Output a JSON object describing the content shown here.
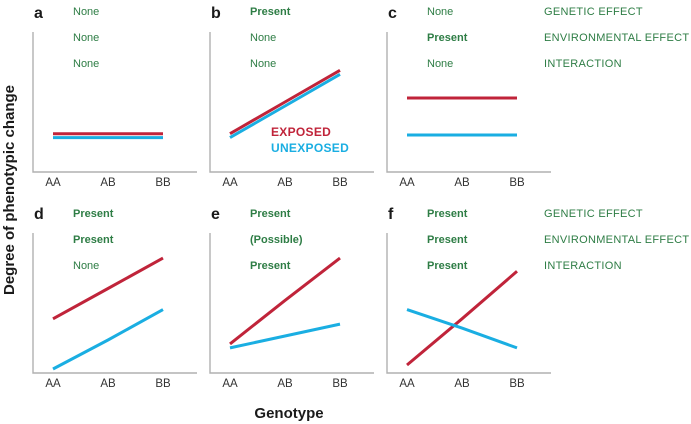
{
  "colors": {
    "exposed": "#c0243a",
    "unexposed": "#1aaee2",
    "status_text": "#2e7d45",
    "axis": "#b0b0b0"
  },
  "legend": {
    "row_labels": [
      "GENETIC EFFECT",
      "ENVIRONMENTAL EFFECT",
      "INTERACTION"
    ],
    "exposed_label": "EXPOSED",
    "unexposed_label": "UNEXPOSED"
  },
  "axes": {
    "xlabel": "Genotype",
    "ylabel": "Degree of phenotypic change"
  },
  "chart_data": [
    {
      "panel": "a",
      "type": "line",
      "categories": [
        "AA",
        "AB",
        "BB"
      ],
      "ylim": [
        0,
        10
      ],
      "effects": [
        "None",
        "None",
        "None"
      ],
      "series": [
        {
          "name": "EXPOSED",
          "values": [
            2.6,
            2.6,
            2.6
          ]
        },
        {
          "name": "UNEXPOSED",
          "values": [
            2.3,
            2.3,
            2.3
          ]
        }
      ]
    },
    {
      "panel": "b",
      "type": "line",
      "categories": [
        "AA",
        "AB",
        "BB"
      ],
      "ylim": [
        0,
        10
      ],
      "effects": [
        "Present",
        "None",
        "None"
      ],
      "series": [
        {
          "name": "EXPOSED",
          "values": [
            2.6,
            5.0,
            7.4
          ]
        },
        {
          "name": "UNEXPOSED",
          "values": [
            2.3,
            4.7,
            7.1
          ]
        }
      ]
    },
    {
      "panel": "c",
      "type": "line",
      "categories": [
        "AA",
        "AB",
        "BB"
      ],
      "ylim": [
        0,
        10
      ],
      "effects": [
        "None",
        "Present",
        "None"
      ],
      "series": [
        {
          "name": "EXPOSED",
          "values": [
            5.3,
            5.3,
            5.3
          ]
        },
        {
          "name": "UNEXPOSED",
          "values": [
            2.5,
            2.5,
            2.5
          ]
        }
      ]
    },
    {
      "panel": "d",
      "type": "line",
      "categories": [
        "AA",
        "AB",
        "BB"
      ],
      "ylim": [
        0,
        10
      ],
      "effects": [
        "Present",
        "Present",
        "None"
      ],
      "series": [
        {
          "name": "EXPOSED",
          "values": [
            3.8,
            6.1,
            8.4
          ]
        },
        {
          "name": "UNEXPOSED",
          "values": [
            0.0,
            2.2,
            4.5
          ]
        }
      ]
    },
    {
      "panel": "e",
      "type": "line",
      "categories": [
        "AA",
        "AB",
        "BB"
      ],
      "ylim": [
        0,
        10
      ],
      "effects": [
        "Present",
        "(Possible)",
        "Present"
      ],
      "series": [
        {
          "name": "EXPOSED",
          "values": [
            1.9,
            5.2,
            8.4
          ]
        },
        {
          "name": "UNEXPOSED",
          "values": [
            1.6,
            2.5,
            3.4
          ]
        }
      ]
    },
    {
      "panel": "f",
      "type": "line",
      "categories": [
        "AA",
        "AB",
        "BB"
      ],
      "ylim": [
        0,
        10
      ],
      "effects": [
        "Present",
        "Present",
        "Present"
      ],
      "series": [
        {
          "name": "EXPOSED",
          "values": [
            0.3,
            3.8,
            7.4
          ]
        },
        {
          "name": "UNEXPOSED",
          "values": [
            4.5,
            3.1,
            1.6
          ]
        }
      ]
    }
  ]
}
